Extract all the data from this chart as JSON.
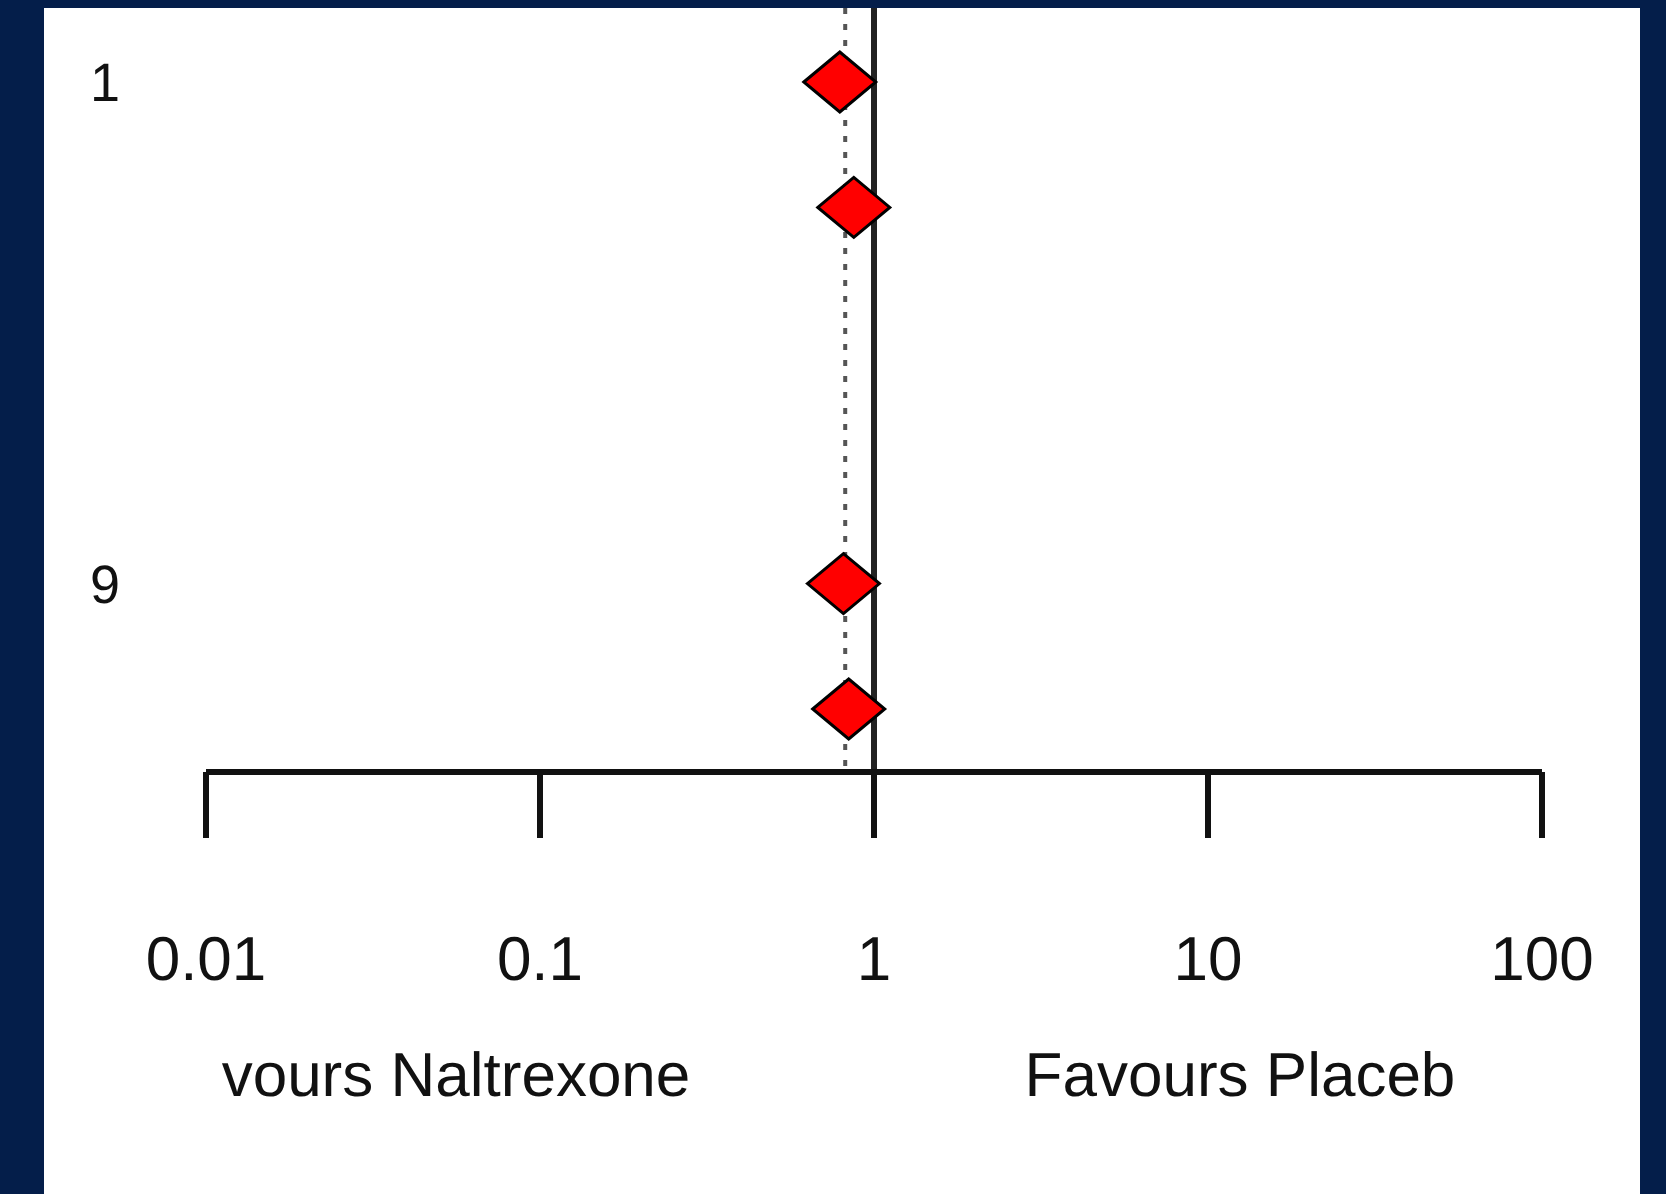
{
  "chart_data": {
    "type": "scatter",
    "orientation": "horizontal",
    "marker": "diamond",
    "log": "x",
    "categories": [
      "1",
      null,
      null,
      null,
      "9",
      null
    ],
    "values": [
      0.79,
      0.87,
      null,
      null,
      0.81,
      0.84
    ],
    "color": "#ff0000",
    "xlim": [
      0.01,
      100
    ],
    "xticks": [
      0.01,
      0.1,
      1,
      10,
      100
    ],
    "ref_lines": [
      {
        "axis": "x",
        "value": 1,
        "line_style": "solid",
        "color": "#222222"
      },
      {
        "axis": "x",
        "value": 0.82,
        "line_style": "dotted",
        "color": "#555555"
      }
    ],
    "annotations": [
      "vours Naltrexone",
      "Favours Placeb"
    ]
  }
}
